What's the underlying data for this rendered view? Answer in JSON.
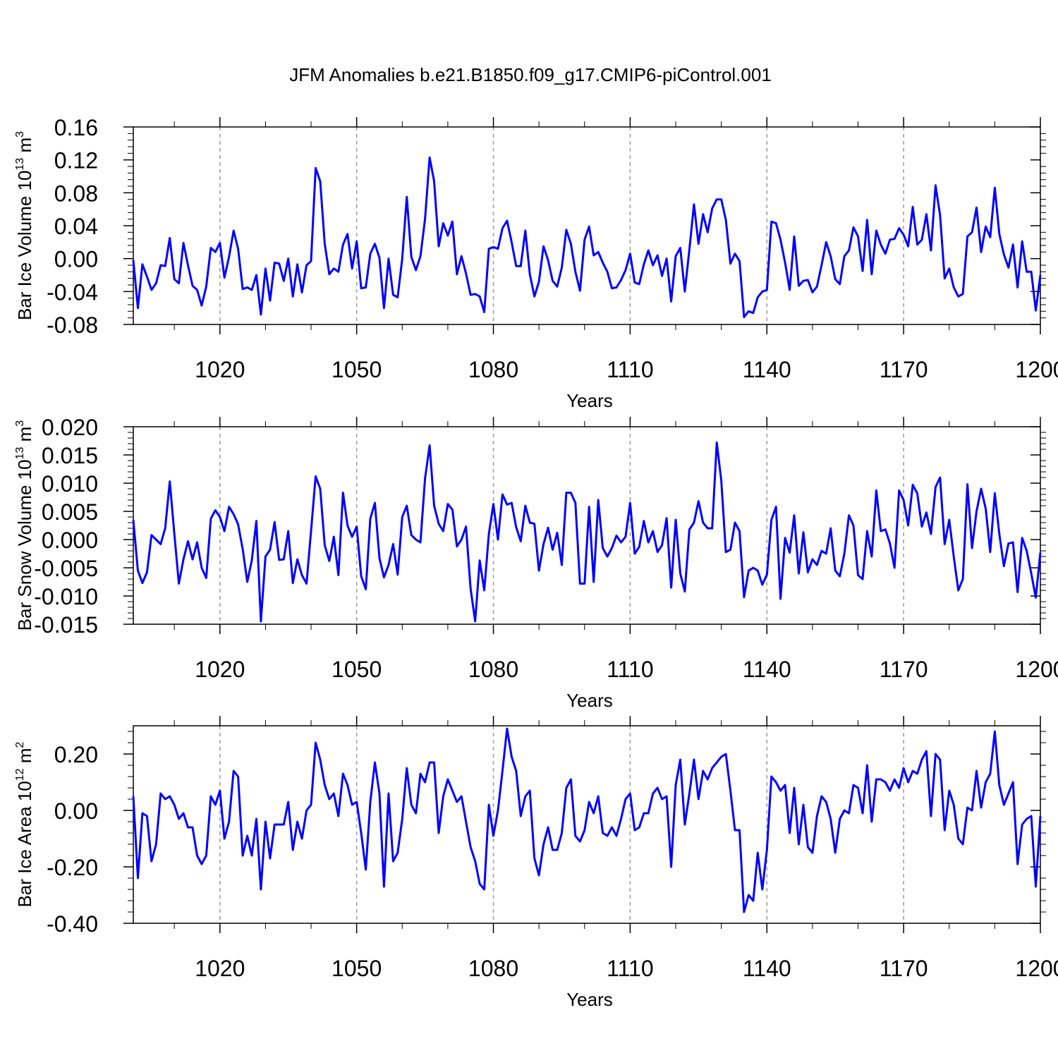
{
  "figure_title": "JFM Anomalies b.e21.B1850.f09_g17.CMIP6-piControl.001",
  "colors": {
    "line": "#0000ff",
    "axes": "#000000",
    "grid": "#999999"
  },
  "chart_data": [
    {
      "type": "line",
      "title": "",
      "xlabel": "Years",
      "ylabel_main": "Bar Ice Volume 10",
      "ylabel_exp": "13",
      "ylabel_unit": " m",
      "ylabel_unit_exp": "3",
      "xlim": [
        1001,
        1200
      ],
      "ylim": [
        -0.08,
        0.16
      ],
      "xticks": [
        1020,
        1050,
        1080,
        1110,
        1140,
        1170,
        1200
      ],
      "yticks": [
        -0.08,
        -0.04,
        0.0,
        0.04,
        0.08,
        0.12,
        0.16
      ],
      "ytick_labels": [
        "-0.08",
        "-0.04",
        "0.00",
        "0.04",
        "0.08",
        "0.12",
        "0.16"
      ],
      "x_start": 1001,
      "series": [
        {
          "name": "Bar Ice Volume",
          "values": [
            -0.002,
            -0.06,
            -0.007,
            -0.022,
            -0.038,
            -0.03,
            -0.008,
            -0.009,
            0.025,
            -0.025,
            -0.03,
            0.019,
            -0.008,
            -0.033,
            -0.038,
            -0.057,
            -0.034,
            0.013,
            0.008,
            0.019,
            -0.023,
            0.002,
            0.034,
            0.012,
            -0.037,
            -0.035,
            -0.038,
            -0.02,
            -0.068,
            -0.012,
            -0.051,
            -0.005,
            -0.006,
            -0.027,
            0.0,
            -0.046,
            -0.007,
            -0.041,
            -0.008,
            -0.003,
            0.11,
            0.094,
            0.018,
            -0.019,
            -0.012,
            -0.016,
            0.017,
            0.03,
            -0.012,
            0.021,
            -0.036,
            -0.035,
            0.006,
            0.018,
            0.001,
            -0.06,
            0.0,
            -0.044,
            -0.047,
            0.0,
            0.075,
            0.002,
            -0.014,
            0.003,
            0.048,
            0.123,
            0.094,
            0.015,
            0.043,
            0.028,
            0.045,
            -0.019,
            0.003,
            -0.018,
            -0.044,
            -0.043,
            -0.046,
            -0.065,
            0.012,
            0.014,
            0.012,
            0.037,
            0.046,
            0.02,
            -0.009,
            -0.009,
            0.034,
            -0.019,
            -0.046,
            -0.028,
            0.015,
            -0.002,
            -0.027,
            -0.034,
            -0.011,
            0.035,
            0.018,
            -0.016,
            -0.039,
            0.023,
            0.039,
            0.004,
            0.008,
            -0.005,
            -0.016,
            -0.036,
            -0.035,
            -0.026,
            -0.014,
            0.006,
            -0.029,
            -0.031,
            -0.007,
            0.01,
            -0.008,
            0.004,
            -0.021,
            0.0,
            -0.052,
            0.003,
            0.013,
            -0.04,
            0.011,
            0.066,
            0.018,
            0.054,
            0.032,
            0.061,
            0.072,
            0.072,
            0.047,
            -0.006,
            0.006,
            -0.003,
            -0.071,
            -0.064,
            -0.066,
            -0.047,
            -0.04,
            -0.038,
            0.045,
            0.043,
            0.023,
            -0.005,
            -0.038,
            0.027,
            -0.033,
            -0.027,
            -0.026,
            -0.041,
            -0.034,
            -0.008,
            0.02,
            0.003,
            -0.025,
            -0.031,
            0.003,
            0.01,
            0.038,
            0.027,
            -0.015,
            0.047,
            -0.019,
            0.034,
            0.017,
            0.006,
            0.023,
            0.024,
            0.037,
            0.029,
            0.015,
            0.063,
            0.017,
            0.023,
            0.054,
            0.01,
            0.089,
            0.053,
            -0.024,
            -0.012,
            -0.035,
            -0.046,
            -0.043,
            0.027,
            0.032,
            0.062,
            0.008,
            0.039,
            0.026,
            0.086,
            0.03,
            0.005,
            -0.011,
            0.017,
            -0.035,
            0.021,
            -0.016,
            -0.016,
            -0.063,
            -0.02
          ]
        }
      ]
    },
    {
      "type": "line",
      "title": "",
      "xlabel": "Years",
      "ylabel_main": "Bar Snow Volume 10",
      "ylabel_exp": "13",
      "ylabel_unit": " m",
      "ylabel_unit_exp": "3",
      "xlim": [
        1001,
        1200
      ],
      "ylim": [
        -0.015,
        0.02
      ],
      "xticks": [
        1020,
        1050,
        1080,
        1110,
        1140,
        1170,
        1200
      ],
      "yticks": [
        -0.015,
        -0.01,
        -0.005,
        0.0,
        0.005,
        0.01,
        0.015,
        0.02
      ],
      "ytick_labels": [
        "-0.015",
        "-0.010",
        "-0.005",
        "0.000",
        "0.005",
        "0.010",
        "0.015",
        "0.020"
      ],
      "x_start": 1001,
      "series": [
        {
          "name": "Bar Snow Volume",
          "values": [
            0.0035,
            -0.0055,
            -0.0077,
            -0.0058,
            0.0008,
            0.0,
            -0.0008,
            0.002,
            0.0103,
            0.001,
            -0.0078,
            -0.0035,
            -0.0003,
            -0.0035,
            -0.0005,
            -0.005,
            -0.0068,
            0.0037,
            0.0052,
            0.004,
            0.0015,
            0.0058,
            0.0045,
            0.0027,
            -0.0017,
            -0.0075,
            -0.0037,
            0.0033,
            -0.0145,
            -0.003,
            -0.0018,
            0.0031,
            -0.0036,
            -0.0035,
            0.0015,
            -0.0077,
            -0.0035,
            -0.0063,
            -0.0078,
            0.0015,
            0.0112,
            0.009,
            -0.001,
            -0.0038,
            0.0005,
            -0.0063,
            0.0083,
            0.0025,
            0.0005,
            0.0023,
            -0.0065,
            -0.0088,
            0.0037,
            0.0065,
            -0.0033,
            -0.0067,
            -0.0045,
            -0.0008,
            -0.0062,
            0.004,
            0.006,
            0.0008,
            0.0,
            -0.0005,
            0.0108,
            0.0167,
            0.006,
            0.0028,
            0.0015,
            0.0063,
            0.0053,
            -0.0012,
            0.0,
            0.0023,
            -0.0087,
            -0.0145,
            -0.0037,
            -0.009,
            0.001,
            0.0063,
            0.0,
            0.008,
            0.0062,
            0.0065,
            0.0022,
            -0.0003,
            0.006,
            0.003,
            0.0028,
            -0.0055,
            -0.0008,
            0.0021,
            -0.0018,
            0.0012,
            -0.0045,
            0.0083,
            0.0083,
            0.0065,
            -0.0078,
            -0.0078,
            0.0058,
            -0.0075,
            0.007,
            -0.0015,
            -0.003,
            -0.0015,
            0.0007,
            -0.0005,
            0.0005,
            0.0065,
            -0.0025,
            -0.0013,
            0.0033,
            -0.0005,
            0.0015,
            -0.0022,
            -0.001,
            0.0038,
            -0.0085,
            0.0035,
            -0.006,
            -0.0092,
            0.0018,
            0.003,
            0.0068,
            0.003,
            0.002,
            0.002,
            0.0172,
            0.0105,
            -0.0022,
            -0.0018,
            0.003,
            0.0015,
            -0.0102,
            -0.0055,
            -0.005,
            -0.0055,
            -0.008,
            -0.0062,
            0.0035,
            0.0058,
            -0.0105,
            0.0003,
            -0.0023,
            0.0043,
            -0.006,
            0.0013,
            -0.0058,
            -0.0035,
            -0.0045,
            -0.002,
            -0.0025,
            0.002,
            -0.0055,
            -0.0065,
            -0.0025,
            0.0043,
            0.0025,
            -0.0063,
            -0.007,
            0.0015,
            -0.003,
            0.0087,
            0.0015,
            0.0018,
            -0.0007,
            -0.005,
            0.0087,
            0.007,
            0.0025,
            0.0097,
            0.0082,
            0.0023,
            0.0048,
            0.001,
            0.0093,
            0.011,
            -0.0008,
            0.0035,
            -0.003,
            -0.009,
            -0.007,
            0.0098,
            -0.0015,
            0.005,
            0.009,
            0.0055,
            -0.0022,
            0.0082,
            0.001,
            -0.0047,
            -0.0007,
            -0.0005,
            -0.0093,
            0.0003,
            -0.002,
            -0.006,
            -0.0103,
            -0.0023
          ]
        }
      ]
    },
    {
      "type": "line",
      "title": "",
      "xlabel": "Years",
      "ylabel_main": "Bar Ice Area 10",
      "ylabel_exp": "12",
      "ylabel_unit": " m",
      "ylabel_unit_exp": "2",
      "xlim": [
        1001,
        1200
      ],
      "ylim": [
        -0.4,
        0.3
      ],
      "xticks": [
        1020,
        1050,
        1080,
        1110,
        1140,
        1170,
        1200
      ],
      "yticks": [
        -0.4,
        -0.2,
        0.0,
        0.2
      ],
      "ytick_labels": [
        "-0.40",
        "-0.20",
        "0.00",
        "0.20"
      ],
      "x_start": 1001,
      "series": [
        {
          "name": "Bar Ice Area",
          "values": [
            0.05,
            -0.24,
            -0.01,
            -0.02,
            -0.18,
            -0.12,
            0.06,
            0.04,
            0.05,
            0.02,
            -0.03,
            -0.01,
            -0.06,
            -0.06,
            -0.16,
            -0.19,
            -0.16,
            0.05,
            0.02,
            0.07,
            -0.1,
            -0.04,
            0.14,
            0.12,
            -0.16,
            -0.09,
            -0.16,
            -0.03,
            -0.28,
            -0.04,
            -0.17,
            -0.05,
            -0.05,
            -0.05,
            0.03,
            -0.14,
            -0.04,
            -0.1,
            0.0,
            0.02,
            0.24,
            0.18,
            0.09,
            0.04,
            0.06,
            -0.02,
            0.13,
            0.09,
            0.02,
            0.03,
            -0.08,
            -0.21,
            0.03,
            0.17,
            0.06,
            -0.27,
            0.06,
            -0.18,
            -0.15,
            -0.03,
            0.15,
            0.02,
            -0.01,
            0.13,
            0.1,
            0.17,
            0.17,
            -0.08,
            0.05,
            0.11,
            0.07,
            0.03,
            0.05,
            -0.04,
            -0.13,
            -0.18,
            -0.26,
            -0.28,
            0.02,
            -0.09,
            0.0,
            0.14,
            0.29,
            0.19,
            0.14,
            -0.02,
            0.05,
            0.07,
            -0.17,
            -0.23,
            -0.12,
            -0.06,
            -0.14,
            -0.14,
            -0.08,
            0.08,
            0.11,
            -0.09,
            -0.11,
            -0.07,
            0.03,
            -0.01,
            0.05,
            -0.08,
            -0.09,
            -0.06,
            -0.09,
            -0.03,
            0.04,
            0.06,
            -0.07,
            -0.06,
            -0.01,
            -0.01,
            0.06,
            0.08,
            0.04,
            0.05,
            -0.2,
            0.09,
            0.18,
            -0.05,
            0.06,
            0.18,
            0.04,
            0.14,
            0.11,
            0.15,
            0.17,
            0.19,
            0.2,
            0.07,
            -0.07,
            -0.07,
            -0.36,
            -0.3,
            -0.32,
            -0.15,
            -0.28,
            -0.14,
            0.12,
            0.1,
            0.07,
            0.09,
            -0.08,
            0.08,
            -0.12,
            0.02,
            -0.13,
            -0.15,
            -0.02,
            0.05,
            0.03,
            -0.03,
            -0.15,
            -0.03,
            0.0,
            -0.01,
            0.09,
            0.08,
            -0.01,
            0.16,
            -0.04,
            0.11,
            0.11,
            0.1,
            0.07,
            0.11,
            0.08,
            0.15,
            0.1,
            0.14,
            0.13,
            0.18,
            0.21,
            -0.02,
            0.2,
            0.18,
            -0.07,
            0.07,
            0.02,
            -0.1,
            -0.12,
            0.01,
            0.0,
            0.14,
            0.01,
            0.1,
            0.13,
            0.28,
            0.09,
            0.02,
            0.06,
            0.1,
            -0.19,
            -0.05,
            -0.03,
            -0.02,
            -0.27,
            -0.02
          ]
        }
      ]
    }
  ]
}
